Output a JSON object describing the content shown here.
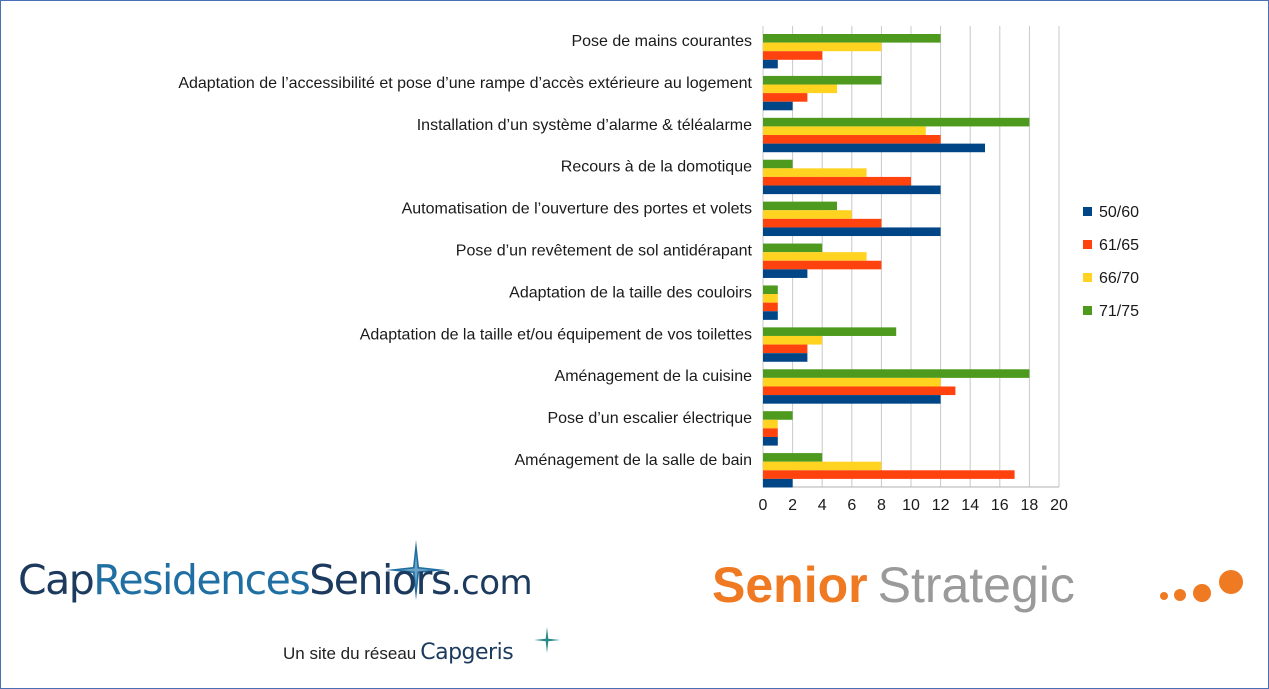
{
  "chart_data": {
    "type": "bar",
    "orientation": "horizontal",
    "categories": [
      "Pose de mains courantes",
      "Adaptation de l’accessibilité et pose d’une rampe d’accès extérieure au logement",
      "Installation d’un système d’alarme & téléalarme",
      "Recours à de la domotique",
      "Automatisation de l’ouverture des portes et volets",
      "Pose d’un revêtement de sol antidérapant",
      "Adaptation de la taille des couloirs",
      "Adaptation de la taille et/ou équipement de vos toilettes",
      "Aménagement de la cuisine",
      "Pose d’un escalier électrique",
      "Aménagement de la  salle de bain"
    ],
    "series": [
      {
        "name": "71/75",
        "color": "#4e9a1e",
        "values": [
          12,
          8,
          18,
          2,
          5,
          4,
          1,
          9,
          18,
          2,
          4
        ]
      },
      {
        "name": "66/70",
        "color": "#ffd320",
        "values": [
          8,
          5,
          11,
          7,
          6,
          7,
          1,
          4,
          12,
          1,
          8
        ]
      },
      {
        "name": "61/65",
        "color": "#ff420e",
        "values": [
          4,
          3,
          12,
          10,
          8,
          8,
          1,
          3,
          13,
          1,
          17
        ]
      },
      {
        "name": "50/60",
        "color": "#004586",
        "values": [
          1,
          2,
          15,
          12,
          12,
          3,
          1,
          3,
          12,
          1,
          2
        ]
      }
    ],
    "legend_order": [
      "50/60",
      "61/65",
      "66/70",
      "71/75"
    ],
    "xlim": [
      0,
      20
    ],
    "xticks": [
      "0",
      "2",
      "4",
      "6",
      "8",
      "10",
      "12",
      "14",
      "16",
      "18",
      "20"
    ],
    "grid": true,
    "legend_position": "right"
  },
  "logos": {
    "cap_part1": "Cap",
    "cap_part2": "Residences",
    "cap_part3": "Seniors",
    "cap_part4": ".com",
    "tagline": "Un site du réseau",
    "tagline_brand": "Capgeris",
    "senior_word1": "Senior",
    "senior_word2": "Strategic"
  },
  "colors": {
    "border": "#4a6fb5",
    "gridline": "#c8c8c8",
    "cap_dark": "#1c3a5e",
    "cap_blue": "#1f6fa3",
    "senior_orange": "#f07a22",
    "strategic_gray": "#9a9a9a"
  }
}
